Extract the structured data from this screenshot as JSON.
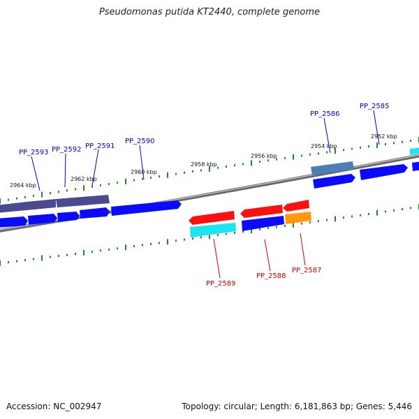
{
  "title": "Pseudomonas putida KT2440, complete genome",
  "footer": {
    "accession": "Accession: NC_002947",
    "summary": "Topology: circular; Length: 6,181,863 bp; Genes: 5,446"
  },
  "colors": {
    "backbone": "#7f7f7f",
    "tick": "#1f8a1f",
    "forward_label": "#0000cc",
    "reverse_label": "#cc0000",
    "cds_blue": "#0a0aff",
    "cds_red": "#ff1010",
    "cds_cyan": "#19e6f0",
    "cds_orange": "#ff9a10",
    "cds_navy": "#4a4a90",
    "cds_steel": "#4a7fb5"
  },
  "scale_labels": [
    "2964 kbp",
    "2962 kbp",
    "2960 kbp",
    "2958 kbp",
    "2956 kbp",
    "2954 kbp",
    "2952 kbp"
  ],
  "forward_genes": [
    "PP_2593",
    "PP_2592",
    "PP_2591",
    "PP_2590",
    "PP_2586",
    "PP_2585"
  ],
  "reverse_genes": [
    "PP_2589",
    "PP_2588",
    "PP_2587"
  ]
}
